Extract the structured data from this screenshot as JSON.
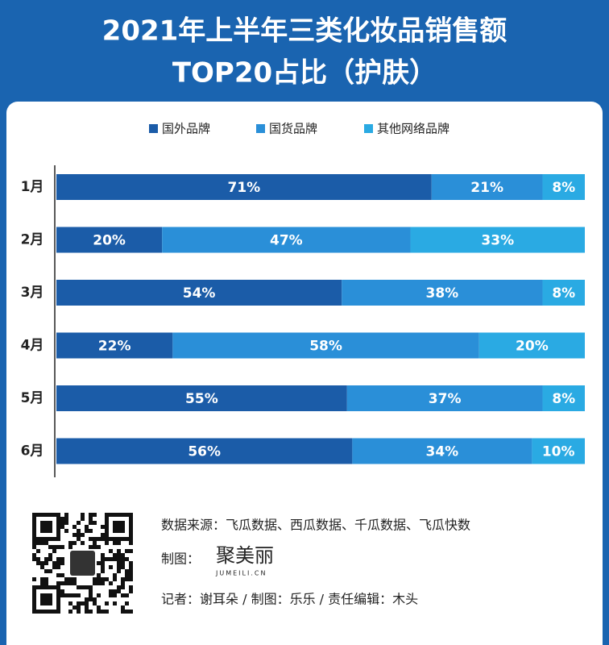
{
  "chart_data": {
    "type": "stacked-bar-horizontal",
    "title": [
      "2021年上半年三类化妆品销售额",
      "TOP20占比（护肤）"
    ],
    "categories": [
      "1月",
      "2月",
      "3月",
      "4月",
      "5月",
      "6月"
    ],
    "xlim": [
      0,
      100
    ],
    "legend": "top",
    "series": [
      {
        "name": "国外品牌",
        "color": "#1b5ca8",
        "values": [
          71,
          20,
          54,
          22,
          55,
          56
        ],
        "value_labels": [
          "71%",
          "20%",
          "54%",
          "22%",
          "55%",
          "56%"
        ]
      },
      {
        "name": "国货品牌",
        "color": "#2a8fd8",
        "values": [
          21,
          47,
          38,
          58,
          37,
          34
        ],
        "value_labels": [
          "21%",
          "47%",
          "38%",
          "58%",
          "37%",
          "34%"
        ]
      },
      {
        "name": "其他网络品牌",
        "color": "#2aaae3",
        "values": [
          8,
          33,
          8,
          20,
          8,
          10
        ],
        "value_labels": [
          "8%",
          "33%",
          "8%",
          "20%",
          "8%",
          "10%"
        ]
      }
    ]
  },
  "footer": {
    "source": "数据来源：飞瓜数据、西瓜数据、千瓜数据、飞瓜快数",
    "chart_by": "制图：",
    "logo": "聚美丽",
    "logo_sub": "JUMEILI.CN",
    "credits": "记者：谢耳朵  /  制图：乐乐  /  责任编辑：木头"
  }
}
